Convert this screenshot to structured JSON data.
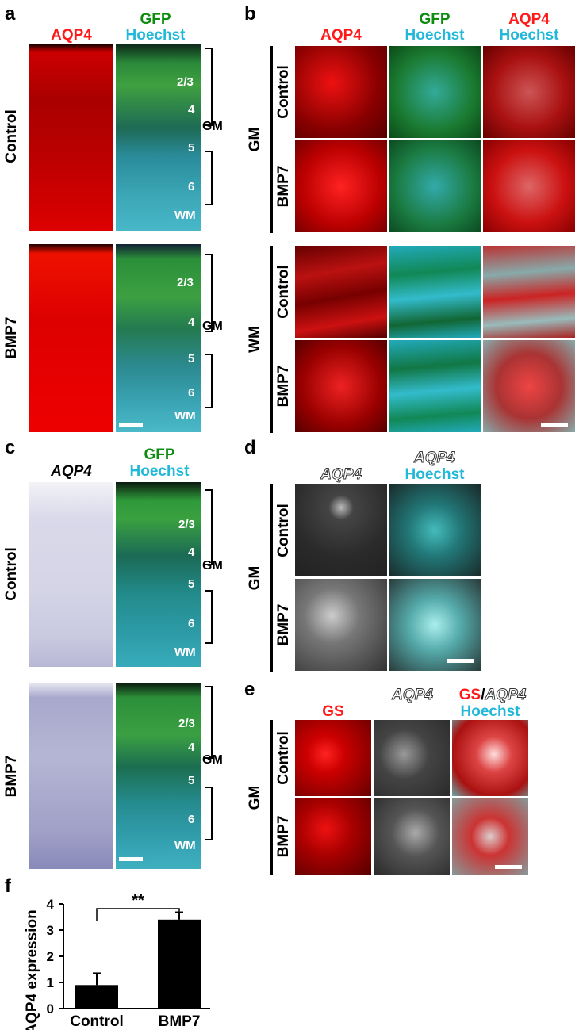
{
  "panels": {
    "a": {
      "letter": "a",
      "ch1": "AQP4",
      "ch2a": "GFP",
      "ch2b": "Hoechst",
      "rows": [
        "Control",
        "BMP7"
      ],
      "layers": [
        "2/3",
        "4",
        "5",
        "6",
        "WM"
      ],
      "region": "GM"
    },
    "b": {
      "letter": "b",
      "cols": [
        {
          "a": "AQP4",
          "b": ""
        },
        {
          "a": "GFP",
          "b": "Hoechst"
        },
        {
          "a": "AQP4",
          "b": "Hoechst"
        }
      ],
      "groups": [
        "GM",
        "WM"
      ],
      "rows": [
        "Control",
        "BMP7"
      ]
    },
    "c": {
      "letter": "c",
      "ch1": "AQP4",
      "ch2a": "GFP",
      "ch2b": "Hoechst",
      "rows": [
        "Control",
        "BMP7"
      ],
      "layers": [
        "2/3",
        "4",
        "5",
        "6",
        "WM"
      ],
      "region": "GM"
    },
    "d": {
      "letter": "d",
      "col1": "AQP4",
      "col2a": "AQP4",
      "col2b": "Hoechst",
      "group": "GM",
      "rows": [
        "Control",
        "BMP7"
      ]
    },
    "e": {
      "letter": "e",
      "col1": "GS",
      "col2": "AQP4",
      "col3a": "GS",
      "col3sep": "/",
      "col3b": "AQP4",
      "col3c": "Hoechst",
      "group": "GM",
      "rows": [
        "Control",
        "BMP7"
      ]
    },
    "f": {
      "letter": "f"
    }
  },
  "colors": {
    "red": "#ff1a1a",
    "green": "#0e8c10",
    "cyan": "#22b8d8"
  },
  "chart_data": {
    "type": "bar",
    "categories": [
      "Control",
      "BMP7"
    ],
    "values": [
      0.9,
      3.4
    ],
    "errors": [
      0.45,
      0.28
    ],
    "ylabel": "AQP4 expression",
    "ylim": [
      0,
      4
    ],
    "yticks": [
      "0",
      "1",
      "2",
      "3",
      "4"
    ],
    "significance": "**"
  }
}
